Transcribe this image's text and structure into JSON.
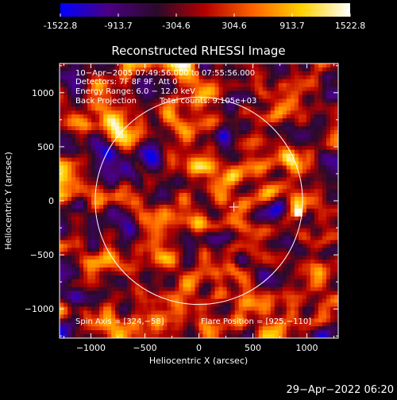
{
  "colorbar": {
    "ticks": [
      "-1522.8",
      "-913.7",
      "-304.6",
      "304.6",
      "913.7",
      "1522.8"
    ],
    "tick_values": [
      -1522.8,
      -913.7,
      -304.6,
      304.6,
      913.7,
      1522.8
    ],
    "min": -1522.8,
    "max": 1522.8,
    "colors": [
      "#0000ff",
      "#4b0082",
      "#2a0a2a",
      "#b40000",
      "#ff6400",
      "#ffd200",
      "#ffffff"
    ]
  },
  "chart_data": {
    "type": "heatmap",
    "title": "Reconstructed RHESSI Image",
    "xlabel": "Heliocentric X (arcsec)",
    "ylabel": "Heliocentric Y (arcsec)",
    "xlim": [
      -1290,
      1290
    ],
    "ylim": [
      -1270,
      1270
    ],
    "x_ticks": [
      -1000,
      -500,
      0,
      500,
      1000
    ],
    "x_tick_labels": [
      "−1000",
      "−500",
      "0",
      "500",
      "1000"
    ],
    "y_ticks": [
      1000,
      500,
      0,
      -500,
      -1000
    ],
    "y_tick_labels": [
      "1000",
      "500",
      "0",
      "−500",
      "−1000"
    ],
    "solar_limb_radius_arcsec": 960,
    "sun_center": [
      0,
      0
    ],
    "spin_axis": [
      324,
      -58
    ],
    "flare_position": [
      925,
      -110
    ],
    "annotations": {
      "time_range": "10−Apr−2005 07:49:56.000 to 07:55:56.000",
      "detectors": "Detectors: 7F 8F 9F, Att 0",
      "energy": "Energy Range: 6.0 − 12.0 keV",
      "method": "Back Projection",
      "total_counts": "Total counts: 9.105e+03",
      "spin_axis": "Spin Axis = [324,−58]",
      "flare_position": "Flare Position = [925,−110]"
    }
  },
  "footer": {
    "timestamp": "29−Apr−2022 06:20"
  }
}
